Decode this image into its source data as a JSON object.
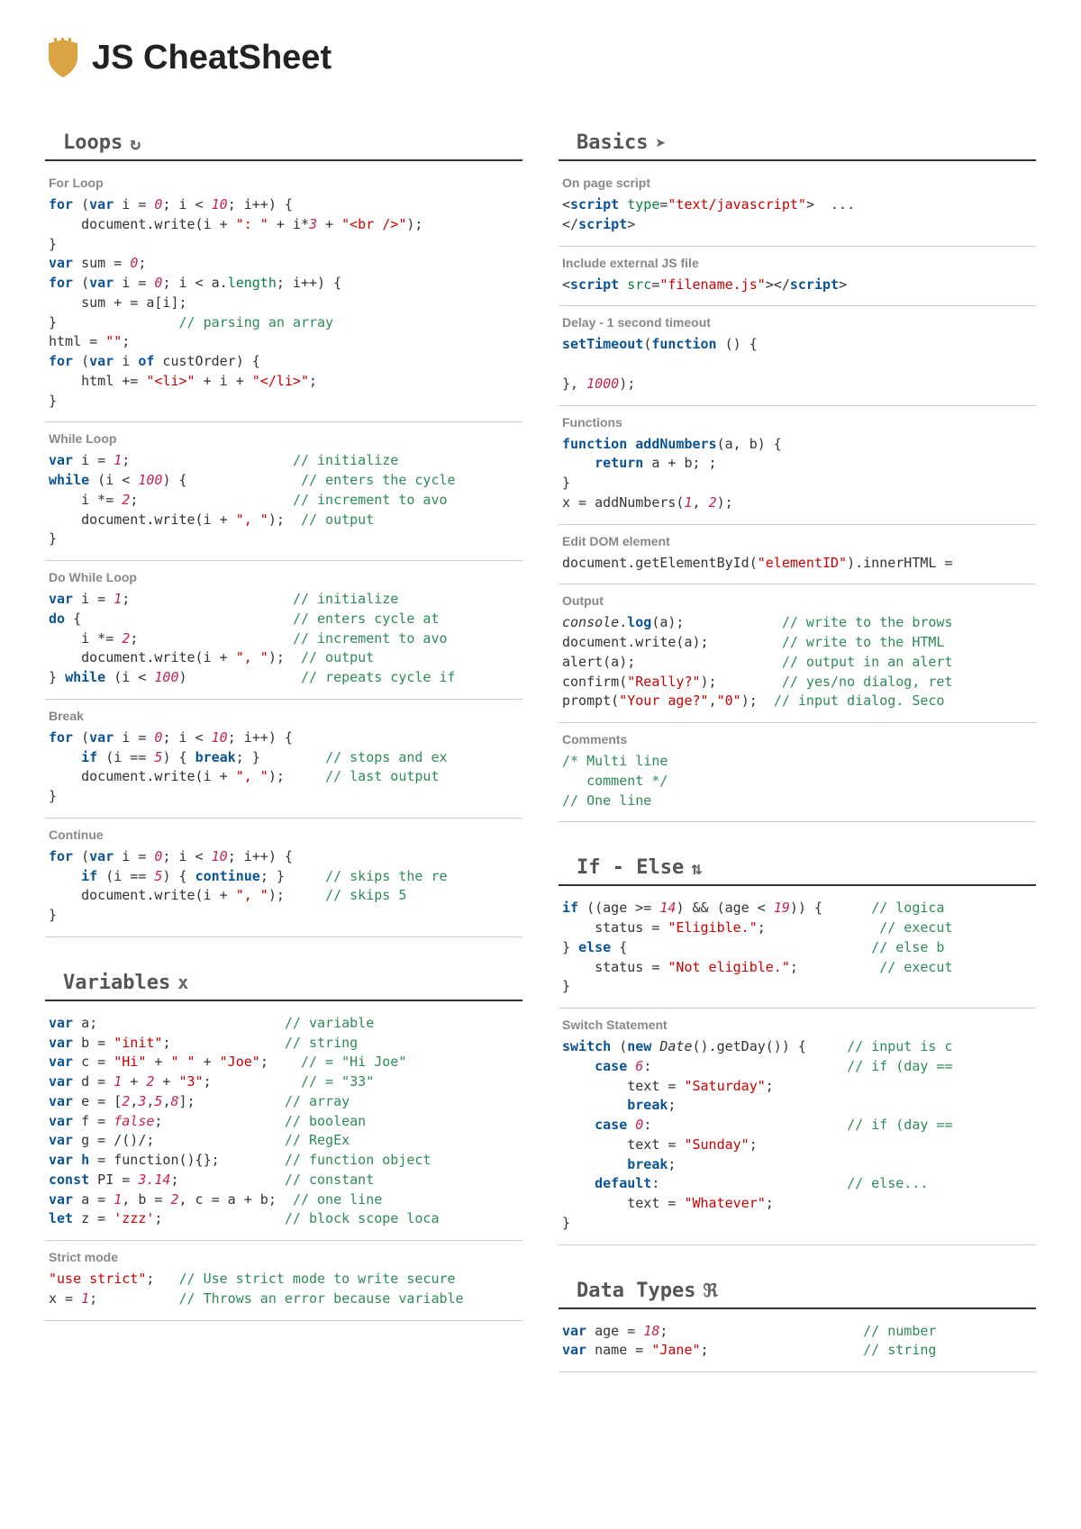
{
  "page": {
    "title": "JS CheatSheet",
    "background": "#ffffff",
    "code_font": "Consolas, Monaco, monospace",
    "code_fontsize": 15,
    "colors": {
      "keyword": "#0b5394",
      "string": "#cc0000",
      "number": "#c7254e",
      "comment": "#2e8b57",
      "prop": "#0b8043",
      "label": "#888888",
      "rule": "#333333",
      "shield": "#d9a441"
    }
  },
  "left": [
    {
      "title": "Loops",
      "glyph": "↻",
      "blocks": [
        {
          "label": "For Loop",
          "code": [
            [
              "kw:for",
              " (",
              "kw:var",
              " i = ",
              "num:0",
              "; i < ",
              "num:10",
              "; i++) {"
            ],
            [
              "    document.write(i + ",
              "str:\": \"",
              " + i*",
              "num:3",
              " + ",
              "str:\"<br />\"",
              ");"
            ],
            [
              "}"
            ],
            [
              "kw:var",
              " sum = ",
              "num:0",
              ";"
            ],
            [
              "kw:for",
              " (",
              "kw:var",
              " i = ",
              "num:0",
              "; i < a.",
              "prop:length",
              "; i++) {"
            ],
            [
              "    sum + = a[i];"
            ],
            [
              "}               ",
              "com:// parsing an array"
            ],
            [
              "html = ",
              "str:\"\"",
              ";"
            ],
            [
              "kw:for",
              " (",
              "kw:var",
              " i ",
              "kw:of",
              " custOrder) {"
            ],
            [
              "    html += ",
              "str:\"<li>\"",
              " + i + ",
              "str:\"</li>\"",
              ";"
            ],
            [
              "}"
            ]
          ]
        },
        {
          "label": "While Loop",
          "code": [
            [
              "kw:var",
              " i = ",
              "num:1",
              ";                    ",
              "com:// initialize"
            ],
            [
              "kw:while",
              " (i < ",
              "num:100",
              ") {              ",
              "com:// enters the cycle"
            ],
            [
              "    i *= ",
              "num:2",
              ";                   ",
              "com:// increment to avo"
            ],
            [
              "    document.write(i + ",
              "str:\", \"",
              ");  ",
              "com:// output"
            ],
            [
              "}"
            ]
          ]
        },
        {
          "label": "Do While Loop",
          "code": [
            [
              "kw:var",
              " i = ",
              "num:1",
              ";                    ",
              "com:// initialize"
            ],
            [
              "kw:do",
              " {                          ",
              "com:// enters cycle at"
            ],
            [
              "    i *= ",
              "num:2",
              ";                   ",
              "com:// increment to avo"
            ],
            [
              "    document.write(i + ",
              "str:\", \"",
              ");  ",
              "com:// output"
            ],
            [
              "} ",
              "kw:while",
              " (i < ",
              "num:100",
              ")              ",
              "com:// repeats cycle if"
            ]
          ]
        },
        {
          "label": "Break",
          "code": [
            [
              "kw:for",
              " (",
              "kw:var",
              " i = ",
              "num:0",
              "; i < ",
              "num:10",
              "; i++) {"
            ],
            [
              "    ",
              "kw:if",
              " (i == ",
              "num:5",
              ") { ",
              "kw:break",
              "; }        ",
              "com:// stops and ex"
            ],
            [
              "    document.write(i + ",
              "str:\", \"",
              ");     ",
              "com:// last output"
            ],
            [
              "}"
            ]
          ]
        },
        {
          "label": "Continue",
          "code": [
            [
              "kw:for",
              " (",
              "kw:var",
              " i = ",
              "num:0",
              "; i < ",
              "num:10",
              "; i++) {"
            ],
            [
              "    ",
              "kw:if",
              " (i == ",
              "num:5",
              ") { ",
              "kw:continue",
              "; }     ",
              "com:// skips the re"
            ],
            [
              "    document.write(i + ",
              "str:\", \"",
              ");     ",
              "com:// skips 5"
            ],
            [
              "}"
            ]
          ]
        }
      ]
    },
    {
      "title": "Variables",
      "glyph": "x",
      "blocks": [
        {
          "label": "",
          "code": [
            [
              "kw:var",
              " a;                       ",
              "com:// variable"
            ],
            [
              "kw:var",
              " b = ",
              "str:\"init\"",
              ";              ",
              "com:// string"
            ],
            [
              "kw:var",
              " c = ",
              "str:\"Hi\"",
              " + ",
              "str:\" \"",
              " + ",
              "str:\"Joe\"",
              ";    ",
              "com:// = \"Hi Joe\""
            ],
            [
              "kw:var",
              " d = ",
              "num:1",
              " + ",
              "num:2",
              " + ",
              "str:\"3\"",
              ";           ",
              "com:// = \"33\""
            ],
            [
              "kw:var",
              " e = [",
              "num:2",
              ",",
              "num:3",
              ",",
              "num:5",
              ",",
              "num:8",
              "];           ",
              "com:// array"
            ],
            [
              "kw:var",
              " f = ",
              "num:false",
              ";               ",
              "com:// boolean"
            ],
            [
              "kw:var",
              " g = /()/;                ",
              "com:// RegEx"
            ],
            [
              "kw:var",
              " ",
              "fn:h",
              " = function(){};        ",
              "com:// function object"
            ],
            [
              "kw:const",
              " PI = ",
              "num:3.14",
              ";             ",
              "com:// constant"
            ],
            [
              "kw:var",
              " a = ",
              "num:1",
              ", b = ",
              "num:2",
              ", c = a + b;  ",
              "com:// one line"
            ],
            [
              "kw:let",
              " z = ",
              "str:'zzz'",
              ";               ",
              "com:// block scope loca"
            ]
          ]
        },
        {
          "label": "Strict mode",
          "code": [
            [
              "str:\"use strict\"",
              ";   ",
              "com:// Use strict mode to write secure"
            ],
            [
              "x = ",
              "num:1",
              ";          ",
              "com:// Throws an error because variable"
            ]
          ]
        }
      ]
    }
  ],
  "right": [
    {
      "title": "Basics",
      "glyph": "➤",
      "blocks": [
        {
          "label": "On page script",
          "code": [
            [
              "<",
              "tag:script",
              " ",
              "prop:type",
              "=",
              "str:\"text/javascript\"",
              ">  ..."
            ],
            [
              "</",
              "tag:script",
              ">"
            ]
          ]
        },
        {
          "label": "Include external JS file",
          "code": [
            [
              "<",
              "tag:script",
              " ",
              "prop:src",
              "=",
              "str:\"filename.js\"",
              "></",
              "tag:script",
              ">"
            ]
          ]
        },
        {
          "label": "Delay - 1 second timeout",
          "code": [
            [
              "fn:setTimeout",
              "(",
              "kw:function",
              " () {"
            ],
            [
              ""
            ],
            [
              "}, ",
              "num:1000",
              ");"
            ]
          ]
        },
        {
          "label": "Functions",
          "code": [
            [
              "kw:function",
              " ",
              "fn:addNumbers",
              "(a, b) {"
            ],
            [
              "    ",
              "kw:return",
              " a + b; ;"
            ],
            [
              "}"
            ],
            [
              "x = addNumbers(",
              "num:1",
              ", ",
              "num:2",
              ");"
            ]
          ]
        },
        {
          "label": "Edit DOM element",
          "code": [
            [
              "document.getElementById(",
              "str:\"elementID\"",
              ").innerHTML ="
            ]
          ]
        },
        {
          "label": "Output",
          "code": [
            [
              "ital:console",
              ".",
              "fn:log",
              "(a);            ",
              "com:// write to the brows"
            ],
            [
              "document.write(a);         ",
              "com:// write to the HTML"
            ],
            [
              "alert(a);                  ",
              "com:// output in an alert"
            ],
            [
              "confirm(",
              "str:\"Really?\"",
              ");        ",
              "com:// yes/no dialog, ret"
            ],
            [
              "prompt(",
              "str:\"Your age?\"",
              ",",
              "str:\"0\"",
              ");  ",
              "com:// input dialog. Seco"
            ]
          ]
        },
        {
          "label": "Comments",
          "code": [
            [
              "com:/* Multi line"
            ],
            [
              "com:   comment */"
            ],
            [
              "com:// One line"
            ]
          ]
        }
      ]
    },
    {
      "title": "If - Else",
      "glyph": "⇅",
      "blocks": [
        {
          "label": "",
          "code": [
            [
              "kw:if",
              " ((age >= ",
              "num:14",
              ") && (age < ",
              "num:19",
              ")) {      ",
              "com:// logica"
            ],
            [
              "    status = ",
              "str:\"Eligible.\"",
              ";              ",
              "com:// execut"
            ],
            [
              "} ",
              "kw:else",
              " {                              ",
              "com:// else b"
            ],
            [
              "    status = ",
              "str:\"Not eligible.\"",
              ";          ",
              "com:// execut"
            ],
            [
              "}"
            ]
          ]
        },
        {
          "label": "Switch Statement",
          "code": [
            [
              "kw:switch",
              " (",
              "kw:new",
              " ",
              "ital:Date",
              "().getDay()) {     ",
              "com:// input is c"
            ],
            [
              "    ",
              "kw:case",
              " ",
              "num:6",
              ":                        ",
              "com:// if (day =="
            ],
            [
              "        text = ",
              "str:\"Saturday\"",
              ";"
            ],
            [
              "        ",
              "kw:break",
              ";"
            ],
            [
              "    ",
              "kw:case",
              " ",
              "num:0",
              ":                        ",
              "com:// if (day =="
            ],
            [
              "        text = ",
              "str:\"Sunday\"",
              ";"
            ],
            [
              "        ",
              "kw:break",
              ";"
            ],
            [
              "    ",
              "kw:default",
              ":                       ",
              "com:// else..."
            ],
            [
              "        text = ",
              "str:\"Whatever\"",
              ";"
            ],
            [
              "}"
            ]
          ]
        }
      ]
    },
    {
      "title": "Data Types",
      "glyph": "ℜ",
      "blocks": [
        {
          "label": "",
          "code": [
            [
              "kw:var",
              " age = ",
              "num:18",
              ";                        ",
              "com:// number"
            ],
            [
              "kw:var",
              " name = ",
              "str:\"Jane\"",
              ";                   ",
              "com:// string"
            ]
          ]
        }
      ]
    }
  ]
}
